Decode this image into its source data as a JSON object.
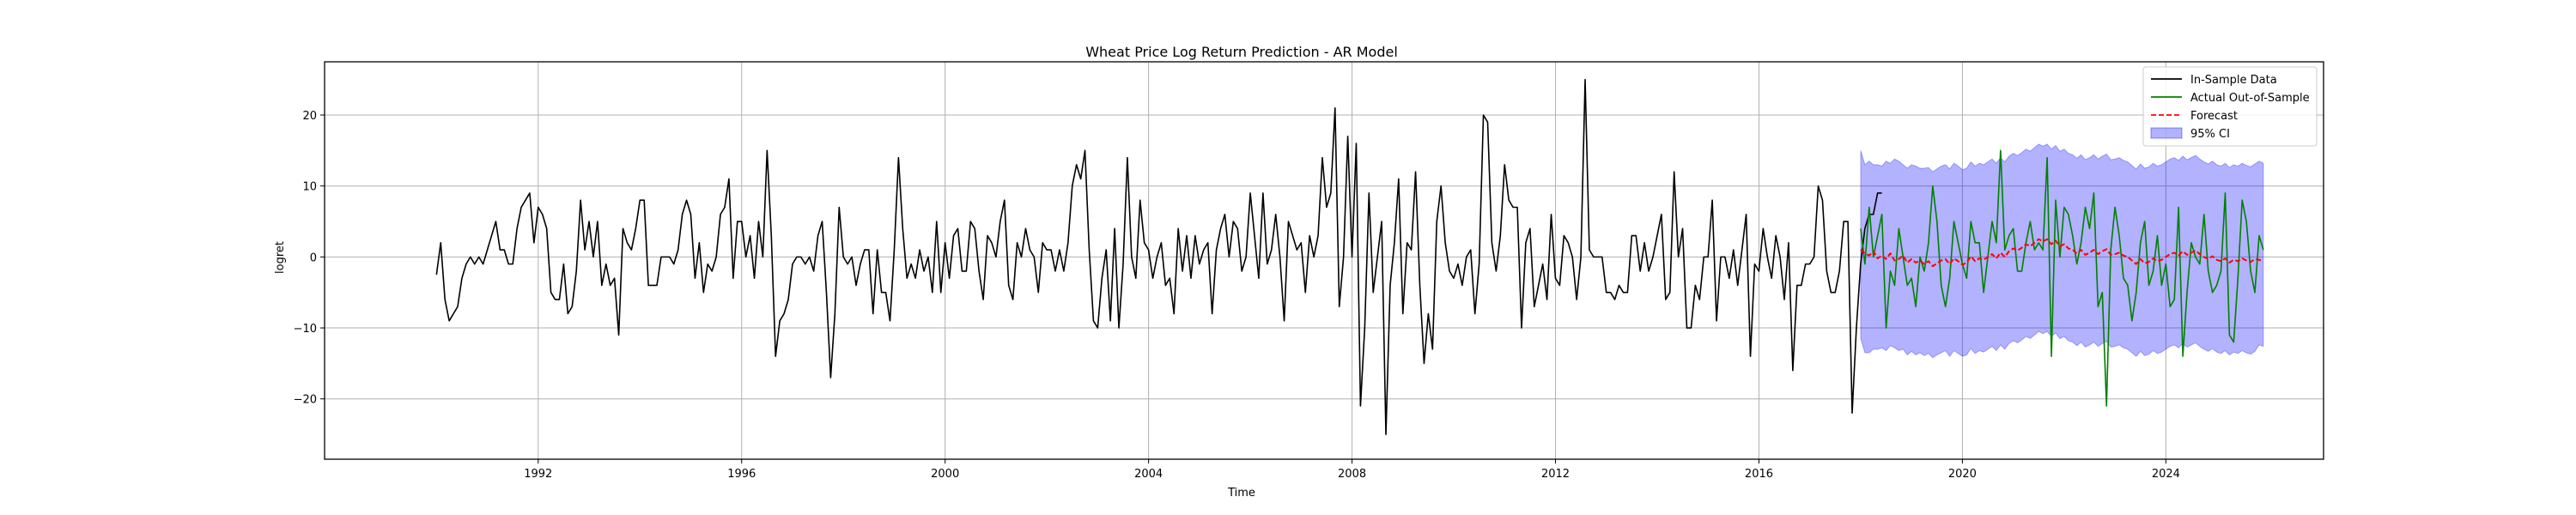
{
  "chart_data": {
    "type": "line",
    "title": "Wheat Price Log Return Prediction - AR Model",
    "xlabel": "Time",
    "ylabel": "logret",
    "xlim": [
      1987.8,
      2027.1
    ],
    "ylim": [
      -28.5,
      27.5
    ],
    "xticks": [
      1992,
      1996,
      2000,
      2004,
      2008,
      2012,
      2016,
      2020,
      2024
    ],
    "yticks": [
      -20,
      -10,
      0,
      10,
      20
    ],
    "grid": true,
    "legend_position": "top-right",
    "colors": {
      "in_sample": "#000000",
      "actual_oos": "#008000",
      "forecast": "#ff0000",
      "ci_fill": "#0000ff"
    },
    "series": [
      {
        "name": "In-Sample Data",
        "style": "solid",
        "x_start": 1990.0,
        "x_step": 0.08333,
        "values": [
          -2.5,
          2,
          -6,
          -9,
          -8,
          -7,
          -3,
          -1,
          0,
          -1,
          0,
          -1,
          1,
          3,
          5,
          1,
          1,
          -1,
          -1,
          4,
          7,
          8,
          9,
          2,
          7,
          6,
          4,
          -5,
          -6,
          -6,
          -1,
          -8,
          -7,
          -2,
          8,
          1,
          5,
          0,
          5,
          -4,
          -1,
          -4,
          -3,
          -11,
          4,
          2,
          1,
          4,
          8,
          8,
          -4,
          -4,
          -4,
          0,
          0,
          0,
          -1,
          1,
          6,
          8,
          6,
          -3,
          2,
          -5,
          -1,
          -2,
          0,
          6,
          7,
          11,
          -3,
          5,
          5,
          0,
          3,
          -3,
          5,
          0,
          15,
          3,
          -14,
          -9,
          -8,
          -6,
          -1,
          0,
          0,
          -1,
          0,
          -2,
          3,
          5,
          -5,
          -17,
          -8,
          7,
          0,
          -1,
          0,
          -4,
          -1,
          1,
          1,
          -8,
          1,
          -5,
          -5,
          -9,
          1,
          14,
          4,
          -3,
          -1,
          -3,
          1,
          -2,
          0,
          -5,
          5,
          -5,
          2,
          -3,
          3,
          4,
          -2,
          -2,
          5,
          4,
          -2,
          -6,
          3,
          2,
          0,
          5,
          8,
          -4,
          -6,
          2,
          0,
          4,
          1,
          0,
          -5,
          2,
          1,
          1,
          -2,
          1,
          -2,
          2,
          10,
          13,
          11,
          15,
          1,
          -9,
          -10,
          -3,
          1,
          -9,
          4,
          -10,
          -1,
          14,
          0,
          -3,
          8,
          2,
          1,
          -3,
          0,
          2,
          -4,
          -3,
          -8,
          4,
          -2,
          3,
          -3,
          3,
          -1,
          1,
          2,
          -8,
          1,
          4,
          6,
          0,
          5,
          4,
          -2,
          0,
          9,
          3,
          -3,
          9,
          -1,
          1,
          6,
          0,
          -9,
          5,
          3,
          1,
          2,
          -5,
          3,
          0,
          3,
          14,
          7,
          9,
          21,
          -7,
          0,
          17,
          0,
          16,
          -21,
          -10,
          9,
          -5,
          0,
          5,
          -25,
          -4,
          2,
          11,
          -8,
          2,
          1,
          12,
          -4,
          -15,
          -8,
          -13,
          5,
          10,
          2,
          -2,
          -3,
          -1,
          -4,
          0,
          1,
          -8,
          -1,
          20,
          19,
          2,
          -2,
          3,
          13,
          8,
          7,
          7,
          -10,
          2,
          4,
          -7,
          -4,
          -1,
          -6,
          6,
          -3,
          -4,
          3,
          2,
          0,
          -6,
          0,
          25,
          1,
          0,
          0,
          0,
          -5,
          -5,
          -6,
          -4,
          -5,
          -5,
          3,
          3,
          -2,
          2,
          -2,
          0,
          3,
          6,
          -6,
          -5,
          12,
          0,
          4,
          -10,
          -10,
          -4,
          -6,
          0,
          0,
          8,
          -9,
          0,
          0,
          -3,
          1,
          -4,
          1,
          6,
          -14,
          -1,
          -2,
          4,
          0,
          -3,
          3,
          0,
          -6,
          2,
          -16,
          -4,
          -4,
          -1,
          -1,
          0,
          10,
          8,
          -2,
          -5,
          -5,
          -2,
          5,
          5,
          -22,
          -10,
          -1,
          4,
          6,
          6,
          9,
          9
        ]
      },
      {
        "name": "Actual Out-of-Sample",
        "style": "solid",
        "x_start": 2018.0,
        "x_step": 0.08333,
        "values": [
          4,
          -1,
          7,
          0,
          3,
          6,
          -10,
          -2,
          -4,
          4,
          0,
          -4,
          -3,
          -7,
          0,
          -2,
          2,
          10,
          5,
          -4,
          -7,
          -3,
          5,
          2,
          -1,
          -3,
          5,
          2,
          2,
          -5,
          0,
          5,
          2,
          15,
          1,
          3,
          4,
          -2,
          -2,
          2,
          5,
          1,
          2,
          1,
          14,
          -14,
          8,
          0,
          7,
          6,
          3,
          -1,
          2,
          7,
          4,
          9,
          -7,
          -5,
          -21,
          1,
          7,
          3,
          -3,
          -4,
          -9,
          -5,
          2,
          5,
          -4,
          -2,
          3,
          -4,
          -1,
          -7,
          -6,
          7,
          -14,
          -5,
          2,
          0,
          -1,
          6,
          -2,
          -5,
          -4,
          -2,
          9,
          -11,
          -12,
          -3,
          8,
          5,
          -2,
          -5,
          3,
          1
        ]
      },
      {
        "name": "Forecast",
        "style": "dashed",
        "x_start": 2018.0,
        "x_step": 0.08333,
        "values": [
          1.0,
          0.5,
          0.2,
          0.8,
          -0.2,
          0.2,
          -0.3,
          0.5,
          -0.5,
          -0.3,
          0.2,
          -0.8,
          -0.3,
          -0.8,
          -0.5,
          -1.0,
          -0.6,
          -1.3,
          -0.9,
          -0.5,
          -0.3,
          -1.0,
          -0.2,
          -0.6,
          -1.1,
          -0.8,
          0.1,
          -0.6,
          -0.2,
          -0.4,
          0.0,
          0.4,
          -0.2,
          0.6,
          0.0,
          0.8,
          1.2,
          0.9,
          1.3,
          1.8,
          1.5,
          2.0,
          2.5,
          2.2,
          2.5,
          1.8,
          2.3,
          1.5,
          1.8,
          1.2,
          1.0,
          0.5,
          1.0,
          0.3,
          0.6,
          1.0,
          0.4,
          0.8,
          1.1,
          0.3,
          0.4,
          0.6,
          0.2,
          0.0,
          -0.5,
          -1.0,
          -0.3,
          -0.9,
          -0.7,
          -0.2,
          -0.6,
          -0.4,
          0.0,
          0.4,
          0.6,
          0.2,
          0.8,
          0.3,
          0.6,
          0.9,
          0.4,
          0.0,
          -0.3,
          0.1,
          -0.4,
          -0.6,
          -0.2,
          -0.8,
          -0.4,
          -0.6,
          -0.2,
          -0.5,
          -0.7,
          -0.3,
          -0.4,
          -0.6
        ]
      },
      {
        "name": "95% CI",
        "type": "band",
        "x_start": 2018.0,
        "x_step": 0.08333,
        "lower": [
          -11.5,
          -13.5,
          -13.5,
          -13.0,
          -13.0,
          -12.8,
          -13.2,
          -12.5,
          -12.8,
          -13.2,
          -13.0,
          -13.8,
          -13.3,
          -13.8,
          -13.5,
          -13.9,
          -13.6,
          -14.2,
          -13.8,
          -13.5,
          -13.2,
          -14.0,
          -13.2,
          -13.6,
          -14.0,
          -13.8,
          -12.9,
          -13.6,
          -13.2,
          -13.4,
          -13.0,
          -12.6,
          -13.2,
          -12.4,
          -13.0,
          -12.2,
          -11.8,
          -12.1,
          -11.7,
          -11.2,
          -11.5,
          -11.0,
          -10.5,
          -10.8,
          -10.5,
          -11.2,
          -10.7,
          -11.5,
          -11.2,
          -11.8,
          -12.0,
          -12.5,
          -12.0,
          -12.7,
          -12.4,
          -12.0,
          -12.6,
          -12.2,
          -11.9,
          -12.7,
          -12.6,
          -12.4,
          -12.8,
          -13.0,
          -13.5,
          -14.0,
          -13.3,
          -13.9,
          -13.7,
          -13.2,
          -13.6,
          -13.4,
          -13.0,
          -12.6,
          -12.4,
          -12.8,
          -12.2,
          -12.7,
          -12.4,
          -12.1,
          -12.6,
          -13.0,
          -13.3,
          -12.9,
          -13.4,
          -13.6,
          -13.2,
          -13.8,
          -13.4,
          -13.6,
          -13.2,
          -13.5,
          -13.7,
          -13.3,
          -12.4,
          -12.6
        ],
        "upper": [
          15.0,
          13.0,
          13.5,
          13.0,
          13.0,
          12.8,
          13.5,
          13.2,
          13.8,
          13.5,
          13.0,
          12.5,
          13.0,
          12.8,
          12.5,
          12.5,
          12.6,
          12.0,
          12.4,
          12.8,
          13.0,
          12.4,
          13.2,
          12.8,
          12.3,
          12.5,
          13.4,
          12.8,
          13.2,
          13.0,
          13.4,
          13.8,
          13.2,
          14.0,
          13.4,
          14.2,
          14.6,
          14.3,
          14.7,
          15.2,
          14.9,
          15.4,
          15.9,
          15.6,
          15.9,
          15.2,
          15.7,
          14.9,
          15.2,
          14.6,
          14.4,
          13.9,
          14.4,
          13.7,
          14.0,
          14.4,
          13.8,
          14.2,
          14.5,
          13.7,
          13.8,
          14.0,
          13.6,
          13.4,
          12.9,
          12.4,
          13.1,
          12.5,
          12.7,
          13.2,
          12.8,
          13.0,
          13.4,
          13.8,
          14.0,
          13.6,
          14.2,
          13.7,
          14.0,
          14.3,
          13.8,
          13.4,
          13.1,
          13.5,
          13.0,
          12.8,
          13.2,
          12.6,
          13.0,
          12.8,
          13.2,
          12.9,
          12.7,
          13.1,
          13.5,
          13.2
        ]
      }
    ]
  }
}
